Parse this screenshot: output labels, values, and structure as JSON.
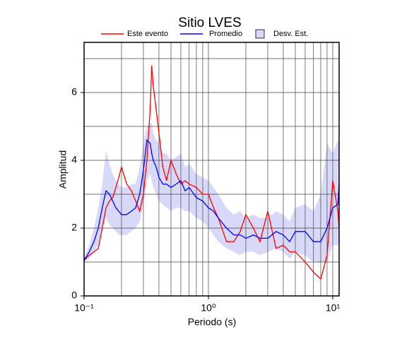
{
  "chart_data": {
    "type": "line",
    "title": "Sitio LVES",
    "x_label": "Periodo (s)",
    "y_label": "Amplitud",
    "x_scale": "log",
    "grid": true,
    "legend": "top",
    "x": [
      0.1,
      0.11,
      0.12,
      0.13,
      0.14,
      0.15,
      0.16,
      0.17,
      0.18,
      0.19,
      0.2,
      0.22,
      0.24,
      0.26,
      0.28,
      0.3,
      0.32,
      0.34,
      0.35,
      0.36,
      0.38,
      0.4,
      0.43,
      0.46,
      0.5,
      0.55,
      0.6,
      0.65,
      0.7,
      0.8,
      0.9,
      1.0,
      1.1,
      1.2,
      1.4,
      1.6,
      1.8,
      2.0,
      2.3,
      2.6,
      3.0,
      3.5,
      4.0,
      4.5,
      5.0,
      6.0,
      7.0,
      8.0,
      9.0,
      10.0,
      11.0,
      11.25
    ],
    "series": [
      {
        "name": "Este evento",
        "color": "#ff0000",
        "values": [
          1.05,
          1.2,
          1.3,
          1.4,
          2.0,
          2.6,
          2.8,
          2.9,
          3.2,
          3.5,
          3.8,
          3.3,
          3.1,
          2.8,
          2.5,
          3.0,
          4.0,
          5.5,
          6.8,
          6.2,
          5.5,
          4.8,
          3.8,
          3.4,
          4.0,
          3.6,
          3.3,
          3.4,
          3.3,
          3.2,
          3.0,
          3.0,
          2.6,
          2.3,
          1.6,
          1.6,
          1.9,
          2.4,
          2.0,
          1.6,
          2.5,
          1.4,
          1.5,
          1.3,
          1.3,
          1.0,
          0.7,
          0.5,
          1.2,
          3.4,
          2.5,
          2.0
        ]
      },
      {
        "name": "Promedio",
        "color": "#0000ff",
        "values": [
          1.05,
          1.3,
          1.6,
          2.0,
          2.6,
          3.1,
          3.0,
          2.8,
          2.6,
          2.5,
          2.4,
          2.4,
          2.5,
          2.6,
          3.0,
          3.7,
          4.6,
          4.5,
          4.2,
          4.0,
          3.8,
          3.5,
          3.3,
          3.3,
          3.2,
          3.3,
          3.4,
          3.1,
          3.2,
          2.9,
          2.8,
          2.6,
          2.5,
          2.3,
          2.0,
          1.8,
          1.8,
          1.7,
          1.8,
          1.7,
          1.7,
          1.9,
          1.8,
          1.6,
          1.9,
          1.9,
          1.6,
          1.6,
          2.0,
          2.6,
          2.7,
          3.3
        ]
      }
    ],
    "band": {
      "name": "Desv. Est.",
      "color": "#d8d8f8",
      "lower": [
        1.0,
        1.1,
        1.3,
        1.5,
        2.0,
        2.3,
        2.1,
        2.0,
        1.9,
        1.8,
        1.8,
        1.8,
        1.9,
        2.0,
        2.2,
        2.7,
        3.4,
        3.6,
        3.4,
        3.2,
        3.0,
        2.8,
        2.7,
        2.6,
        2.5,
        2.6,
        2.6,
        2.5,
        2.5,
        2.3,
        2.2,
        2.0,
        1.8,
        1.6,
        1.4,
        1.3,
        1.2,
        1.3,
        1.3,
        1.2,
        1.3,
        1.4,
        1.3,
        1.1,
        1.3,
        1.2,
        1.0,
        1.0,
        1.0,
        1.5,
        1.5,
        1.6
      ],
      "upper": [
        1.1,
        1.5,
        2.0,
        2.6,
        3.3,
        4.3,
        3.9,
        3.6,
        3.4,
        3.3,
        3.2,
        3.2,
        3.3,
        3.3,
        3.8,
        4.5,
        5.0,
        5.1,
        5.1,
        4.8,
        4.6,
        4.5,
        4.2,
        4.2,
        4.0,
        4.1,
        4.2,
        3.8,
        3.9,
        3.6,
        3.5,
        3.4,
        3.2,
        3.0,
        2.6,
        2.4,
        2.5,
        2.3,
        2.4,
        2.3,
        2.3,
        2.5,
        2.4,
        2.2,
        2.6,
        2.7,
        2.5,
        3.0,
        4.5,
        4.2,
        4.6,
        4.5
      ]
    },
    "xlim": [
      0.1,
      11.25
    ],
    "ylim": [
      0,
      7.48
    ],
    "xticks": [
      {
        "value": 0.1,
        "label": "10⁻¹"
      },
      {
        "value": 1,
        "label": "10⁰"
      },
      {
        "value": 10,
        "label": "10¹"
      }
    ],
    "xminor_ticks": [
      0.2,
      0.3,
      0.4,
      0.5,
      0.6,
      0.7,
      0.8,
      0.9,
      2,
      3,
      4,
      5,
      6,
      7,
      8,
      9
    ],
    "yticks": [
      0,
      2,
      4,
      6
    ],
    "yminor_ticks": [
      1,
      3,
      5,
      7
    ]
  }
}
